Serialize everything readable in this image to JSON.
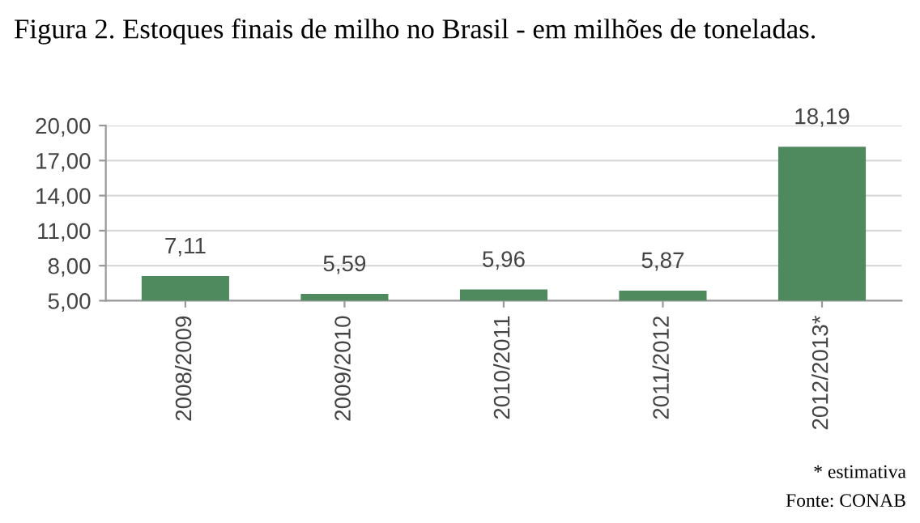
{
  "chart_data": {
    "type": "bar",
    "title": "Figura 2. Estoques finais de milho no Brasil - em milhões de toneladas.",
    "categories": [
      "2008/2009",
      "2009/2010",
      "2010/2011",
      "2011/2012",
      "2012/2013*"
    ],
    "values": [
      7.11,
      5.59,
      5.96,
      5.87,
      18.19
    ],
    "value_labels": [
      "7,11",
      "5,59",
      "5,96",
      "5,87",
      "18,19"
    ],
    "color": "#4f8a5e",
    "ylim": [
      5,
      20
    ],
    "yticks": [
      {
        "value": 5,
        "label": "5,00"
      },
      {
        "value": 8,
        "label": "8,00"
      },
      {
        "value": 11,
        "label": "11,00"
      },
      {
        "value": 14,
        "label": "14,00"
      },
      {
        "value": 17,
        "label": "17,00"
      },
      {
        "value": 20,
        "label": "20,00"
      }
    ],
    "grid": "y",
    "annotations": [
      "* estimativa",
      "Fonte: CONAB"
    ]
  }
}
